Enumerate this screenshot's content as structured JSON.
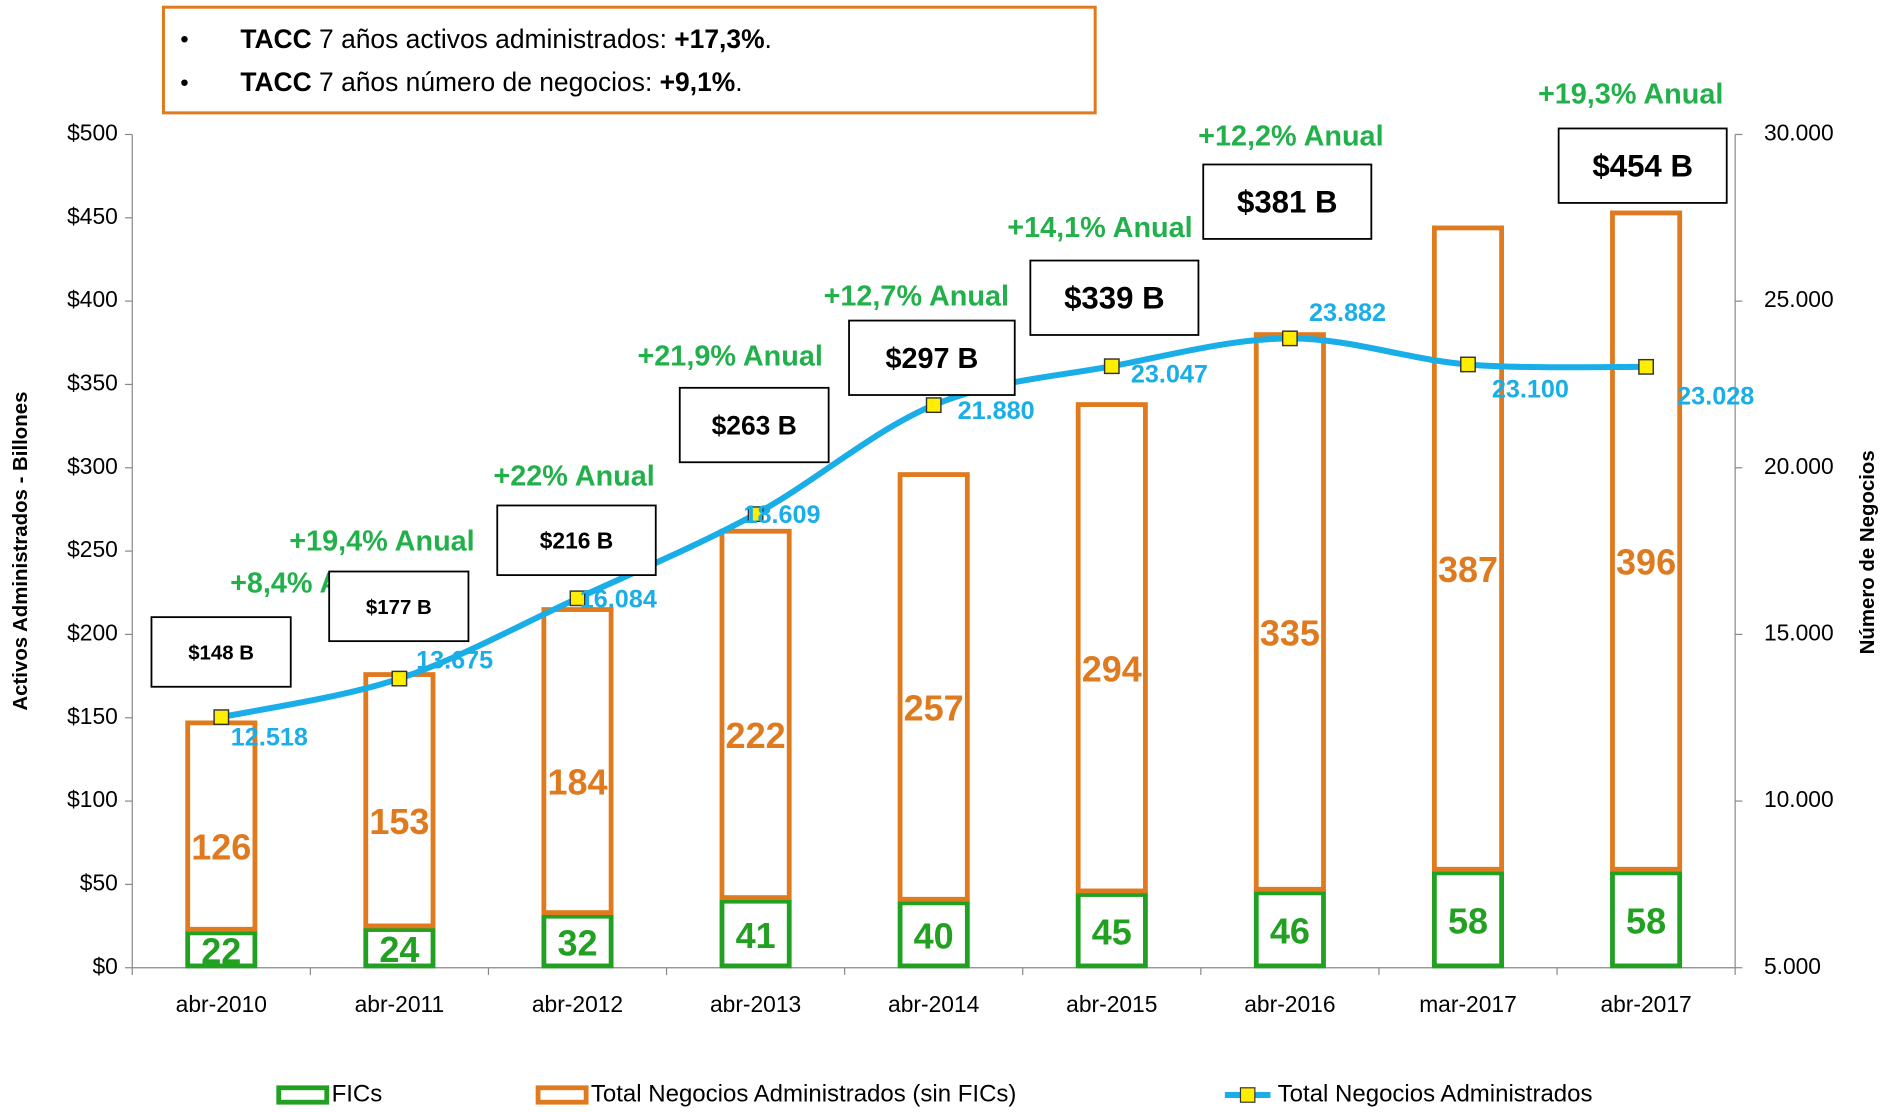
{
  "chart_data": {
    "type": "bar",
    "notes": [
      [
        "TACC",
        " 7 años activos administrados: ",
        "+17,3%",
        "."
      ],
      [
        "TACC",
        " 7 años número de negocios: ",
        "+9,1%",
        "."
      ]
    ],
    "categories": [
      "abr-2010",
      "abr-2011",
      "abr-2012",
      "abr-2013",
      "abr-2014",
      "abr-2015",
      "abr-2016",
      "mar-2017",
      "abr-2017"
    ],
    "series": [
      {
        "name": "FICs",
        "color": "#22a022",
        "values": [
          22,
          24,
          32,
          41,
          40,
          45,
          46,
          58,
          58
        ]
      },
      {
        "name": "Total Negocios Administrados (sin FICs)",
        "color": "#e07a1f",
        "values": [
          126,
          153,
          184,
          222,
          257,
          294,
          335,
          387,
          396
        ]
      },
      {
        "name": "Total Negocios Administrados",
        "color": "#1aaee8",
        "axis": "y2",
        "type": "line",
        "values": [
          12518,
          13675,
          16084,
          18609,
          21880,
          23047,
          23882,
          23100,
          23028
        ],
        "value_labels": [
          "12.518",
          "13.675",
          "16.084",
          "18.609",
          "21.880",
          "23.047",
          "23.882",
          "23.100",
          "23.028"
        ]
      }
    ],
    "annotations": [
      {
        "box": "$148 B",
        "growth": "+8,4% Anual"
      },
      {
        "box": "$177 B",
        "growth": "+19,4% Anual"
      },
      {
        "box": "$216 B",
        "growth": "+22% Anual"
      },
      {
        "box": "$263 B",
        "growth": "+21,9% Anual"
      },
      {
        "box": "$297 B",
        "growth": "+12,7% Anual"
      },
      {
        "box": "$339 B",
        "growth": "+14,1% Anual"
      },
      {
        "box": "$381 B",
        "growth": "+12,2% Anual"
      },
      {
        "box": "$454 B",
        "growth": "+19,3% Anual"
      }
    ],
    "ylabel": "Activos Administrados - Billones",
    "y2label": "Número de Negocios",
    "ylim": [
      0,
      500
    ],
    "yticks": [
      {
        "value": 0,
        "label": "$0"
      },
      {
        "value": 50,
        "label": "$50"
      },
      {
        "value": 100,
        "label": "$100"
      },
      {
        "value": 150,
        "label": "$150"
      },
      {
        "value": 200,
        "label": "$200"
      },
      {
        "value": 250,
        "label": "$250"
      },
      {
        "value": 300,
        "label": "$300"
      },
      {
        "value": 350,
        "label": "$350"
      },
      {
        "value": 400,
        "label": "$400"
      },
      {
        "value": 450,
        "label": "$450"
      },
      {
        "value": 500,
        "label": "$500"
      }
    ],
    "y2lim": [
      5000,
      30000
    ],
    "y2ticks": [
      {
        "value": 5000,
        "label": "5.000"
      },
      {
        "value": 10000,
        "label": "10.000"
      },
      {
        "value": 15000,
        "label": "15.000"
      },
      {
        "value": 20000,
        "label": "20.000"
      },
      {
        "value": 25000,
        "label": "25.000"
      },
      {
        "value": 30000,
        "label": "30.000"
      }
    ]
  }
}
